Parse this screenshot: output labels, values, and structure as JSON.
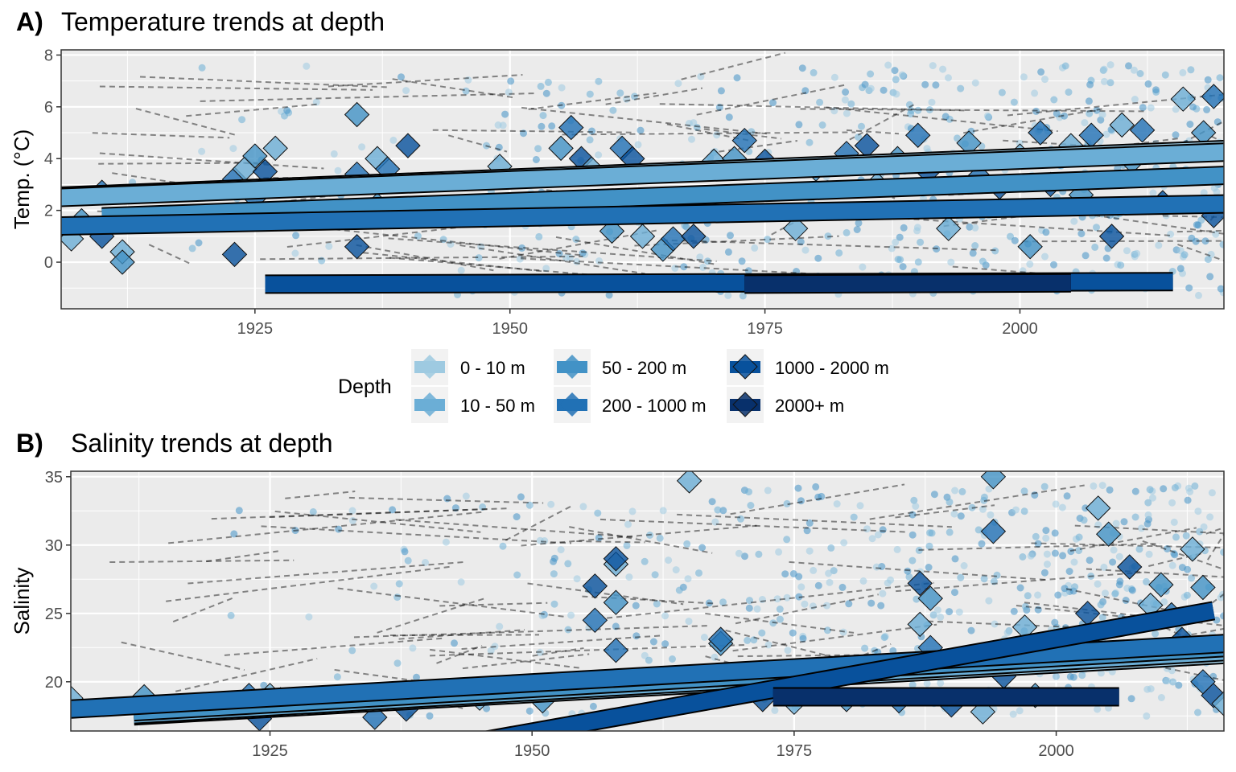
{
  "colors": {
    "panel_bg": "#EBEBEB",
    "grid": "#FFFFFF",
    "depth": [
      "#9ECAE1",
      "#6BAED6",
      "#4292C6",
      "#2171B5",
      "#08519C",
      "#08306B"
    ]
  },
  "legend": {
    "title": "Depth",
    "items": [
      "0 - 10 m",
      "10 - 50 m",
      "50 - 200 m",
      "200 - 1000 m",
      "1000 - 2000 m",
      "2000+ m"
    ]
  },
  "chart_data": [
    {
      "type": "scatter",
      "tag": "A)",
      "title": "Temperature trends at depth",
      "xlabel": "",
      "ylabel": "Temp. (°C)",
      "xlim": [
        1906,
        2020
      ],
      "ylim": [
        -1.8,
        8.2
      ],
      "xticks": [
        1925,
        1950,
        1975,
        2000
      ],
      "yticks": [
        0,
        2,
        4,
        6,
        8
      ],
      "grid": true,
      "trend_lines": [
        {
          "depth": "0 - 10 m",
          "x": [
            1906,
            2020
          ],
          "y": [
            2.55,
            4.35
          ]
        },
        {
          "depth": "10 - 50 m",
          "x": [
            1906,
            2020
          ],
          "y": [
            2.5,
            4.25
          ]
        },
        {
          "depth": "50 - 200 m",
          "x": [
            1910,
            2020
          ],
          "y": [
            1.75,
            3.35
          ]
        },
        {
          "depth": "200 - 1000 m",
          "x": [
            1906,
            2020
          ],
          "y": [
            1.4,
            2.25
          ]
        },
        {
          "depth": "1000 - 2000 m",
          "x": [
            1926,
            2015
          ],
          "y": [
            -0.85,
            -0.75
          ]
        },
        {
          "depth": "2000+ m",
          "x": [
            1973,
            2005
          ],
          "y": [
            -0.85,
            -0.8
          ]
        }
      ],
      "site_means": [
        {
          "x": 1907,
          "y": 0.9
        },
        {
          "x": 1908,
          "y": 1.6
        },
        {
          "x": 1910,
          "y": 2.7
        },
        {
          "x": 1910,
          "y": 1.0
        },
        {
          "x": 1912,
          "y": 0.4
        },
        {
          "x": 1912,
          "y": 0.0
        },
        {
          "x": 1923,
          "y": 3.2
        },
        {
          "x": 1923,
          "y": 0.3
        },
        {
          "x": 1924,
          "y": 3.6
        },
        {
          "x": 1925,
          "y": 4.1
        },
        {
          "x": 1925,
          "y": 2.5
        },
        {
          "x": 1926,
          "y": 3.5
        },
        {
          "x": 1927,
          "y": 4.4
        },
        {
          "x": 1935,
          "y": 5.7
        },
        {
          "x": 1935,
          "y": 3.4
        },
        {
          "x": 1935,
          "y": 0.6
        },
        {
          "x": 1937,
          "y": 4.0
        },
        {
          "x": 1937,
          "y": 2.2
        },
        {
          "x": 1938,
          "y": 3.6
        },
        {
          "x": 1940,
          "y": 4.5
        },
        {
          "x": 1949,
          "y": 3.7
        },
        {
          "x": 1955,
          "y": 4.4
        },
        {
          "x": 1956,
          "y": 5.2
        },
        {
          "x": 1957,
          "y": 4.0
        },
        {
          "x": 1958,
          "y": 3.6
        },
        {
          "x": 1960,
          "y": 1.2
        },
        {
          "x": 1961,
          "y": 4.4
        },
        {
          "x": 1962,
          "y": 4.0
        },
        {
          "x": 1963,
          "y": 1.0
        },
        {
          "x": 1965,
          "y": 0.5
        },
        {
          "x": 1966,
          "y": 0.9
        },
        {
          "x": 1968,
          "y": 1.0
        },
        {
          "x": 1970,
          "y": 3.9
        },
        {
          "x": 1972,
          "y": 4.0
        },
        {
          "x": 1973,
          "y": 4.7
        },
        {
          "x": 1975,
          "y": 3.9
        },
        {
          "x": 1978,
          "y": 1.3
        },
        {
          "x": 1980,
          "y": 3.6
        },
        {
          "x": 1983,
          "y": 4.2
        },
        {
          "x": 1985,
          "y": 4.5
        },
        {
          "x": 1986,
          "y": 3.0
        },
        {
          "x": 1988,
          "y": 4.0
        },
        {
          "x": 1990,
          "y": 4.9
        },
        {
          "x": 1991,
          "y": 3.5
        },
        {
          "x": 1993,
          "y": 1.3
        },
        {
          "x": 1995,
          "y": 4.6
        },
        {
          "x": 1996,
          "y": 3.3
        },
        {
          "x": 1998,
          "y": 2.9
        },
        {
          "x": 2000,
          "y": 4.1
        },
        {
          "x": 2001,
          "y": 0.6
        },
        {
          "x": 2002,
          "y": 5.0
        },
        {
          "x": 2003,
          "y": 3.0
        },
        {
          "x": 2005,
          "y": 4.5
        },
        {
          "x": 2006,
          "y": 2.6
        },
        {
          "x": 2007,
          "y": 4.9
        },
        {
          "x": 2009,
          "y": 1.0
        },
        {
          "x": 2010,
          "y": 5.3
        },
        {
          "x": 2011,
          "y": 3.9
        },
        {
          "x": 2012,
          "y": 5.1
        },
        {
          "x": 2014,
          "y": 2.3
        },
        {
          "x": 2016,
          "y": 6.3
        },
        {
          "x": 2018,
          "y": 5.0
        },
        {
          "x": 2019,
          "y": 6.4
        },
        {
          "x": 2019,
          "y": 1.8
        }
      ]
    },
    {
      "type": "scatter",
      "tag": "B)",
      "title": "Salinity trends at depth",
      "xlabel": "",
      "ylabel": "Salinity",
      "xlim": [
        1906,
        2016
      ],
      "ylim": [
        16.4,
        35.4
      ],
      "xticks": [
        1925,
        1950,
        1975,
        2000
      ],
      "yticks": [
        20,
        25,
        30,
        35
      ],
      "grid": true,
      "trend_lines": [
        {
          "depth": "0 - 10 m",
          "x": [
            1912,
            2016
          ],
          "y": [
            17.5,
            22.0
          ]
        },
        {
          "depth": "10 - 50 m",
          "x": [
            1912,
            2016
          ],
          "y": [
            17.6,
            22.2
          ]
        },
        {
          "depth": "50 - 200 m",
          "x": [
            1912,
            2016
          ],
          "y": [
            17.8,
            22.5
          ]
        },
        {
          "depth": "200 - 1000 m",
          "x": [
            1906,
            2016
          ],
          "y": [
            18.0,
            22.8
          ]
        },
        {
          "depth": "1000 - 2000 m",
          "x": [
            1944,
            2015
          ],
          "y": [
            15.5,
            25.2
          ]
        },
        {
          "depth": "2000+ m",
          "x": [
            1973,
            2006
          ],
          "y": [
            18.9,
            18.9
          ]
        }
      ],
      "site_means": [
        {
          "x": 1906,
          "y": 18.8
        },
        {
          "x": 1913,
          "y": 18.9
        },
        {
          "x": 1923,
          "y": 19.0
        },
        {
          "x": 1924,
          "y": 17.3
        },
        {
          "x": 1925,
          "y": 19.0
        },
        {
          "x": 1926,
          "y": 18.7
        },
        {
          "x": 1935,
          "y": 17.4
        },
        {
          "x": 1938,
          "y": 18.0
        },
        {
          "x": 1945,
          "y": 18.8
        },
        {
          "x": 1951,
          "y": 18.6
        },
        {
          "x": 1956,
          "y": 24.5
        },
        {
          "x": 1956,
          "y": 27.0
        },
        {
          "x": 1958,
          "y": 28.6
        },
        {
          "x": 1958,
          "y": 25.8
        },
        {
          "x": 1958,
          "y": 22.3
        },
        {
          "x": 1958,
          "y": 29.0
        },
        {
          "x": 1965,
          "y": 34.7
        },
        {
          "x": 1968,
          "y": 22.8
        },
        {
          "x": 1968,
          "y": 23.1
        },
        {
          "x": 1972,
          "y": 18.7
        },
        {
          "x": 1975,
          "y": 18.5
        },
        {
          "x": 1980,
          "y": 18.7
        },
        {
          "x": 1985,
          "y": 18.6
        },
        {
          "x": 1987,
          "y": 27.2
        },
        {
          "x": 1987,
          "y": 24.2
        },
        {
          "x": 1988,
          "y": 26.1
        },
        {
          "x": 1988,
          "y": 22.5
        },
        {
          "x": 1990,
          "y": 18.3
        },
        {
          "x": 1993,
          "y": 17.8
        },
        {
          "x": 1994,
          "y": 35.0
        },
        {
          "x": 1994,
          "y": 31.0
        },
        {
          "x": 1995,
          "y": 20.4
        },
        {
          "x": 1997,
          "y": 24.0
        },
        {
          "x": 1998,
          "y": 19.0
        },
        {
          "x": 2001,
          "y": 22.0
        },
        {
          "x": 2003,
          "y": 25.0
        },
        {
          "x": 2004,
          "y": 32.7
        },
        {
          "x": 2005,
          "y": 30.8
        },
        {
          "x": 2006,
          "y": 22.0
        },
        {
          "x": 2007,
          "y": 28.4
        },
        {
          "x": 2009,
          "y": 25.6
        },
        {
          "x": 2010,
          "y": 27.1
        },
        {
          "x": 2011,
          "y": 24.9
        },
        {
          "x": 2012,
          "y": 23.1
        },
        {
          "x": 2013,
          "y": 29.7
        },
        {
          "x": 2014,
          "y": 26.9
        },
        {
          "x": 2014,
          "y": 20.0
        },
        {
          "x": 2015,
          "y": 19.0
        },
        {
          "x": 2016,
          "y": 18.4
        }
      ]
    }
  ]
}
